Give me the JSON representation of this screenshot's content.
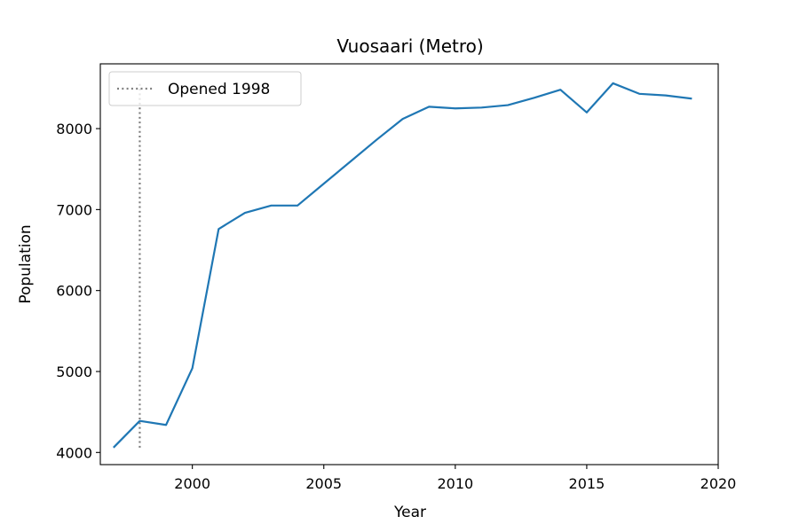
{
  "chart_data": {
    "type": "line",
    "title": "Vuosaari (Metro)",
    "xlabel": "Year",
    "ylabel": "Population",
    "xlim": [
      1996.5,
      2020
    ],
    "ylim": [
      3850,
      8800
    ],
    "x_ticks": [
      2000,
      2005,
      2010,
      2015,
      2020
    ],
    "y_ticks": [
      4000,
      5000,
      6000,
      7000,
      8000
    ],
    "grid": false,
    "legend_placement": "top-left",
    "series": [
      {
        "color": "#1f77b4",
        "x": [
          1997,
          1998,
          1999,
          2000,
          2001,
          2002,
          2003,
          2004,
          2005,
          2006,
          2007,
          2008,
          2009,
          2010,
          2011,
          2012,
          2013,
          2014,
          2015,
          2016,
          2017,
          2018,
          2019
        ],
        "y": [
          4060,
          4390,
          4340,
          5040,
          6760,
          6960,
          7050,
          7050,
          7320,
          7590,
          7860,
          8120,
          8270,
          8250,
          8260,
          8290,
          8380,
          8480,
          8200,
          8560,
          8430,
          8410,
          8370
        ]
      }
    ],
    "annotations": [
      {
        "name": "Opened 1998",
        "type": "vline",
        "x": 1998,
        "y_range": [
          4060,
          8560
        ],
        "color": "#7f7f7f",
        "style": "dotted"
      }
    ]
  }
}
